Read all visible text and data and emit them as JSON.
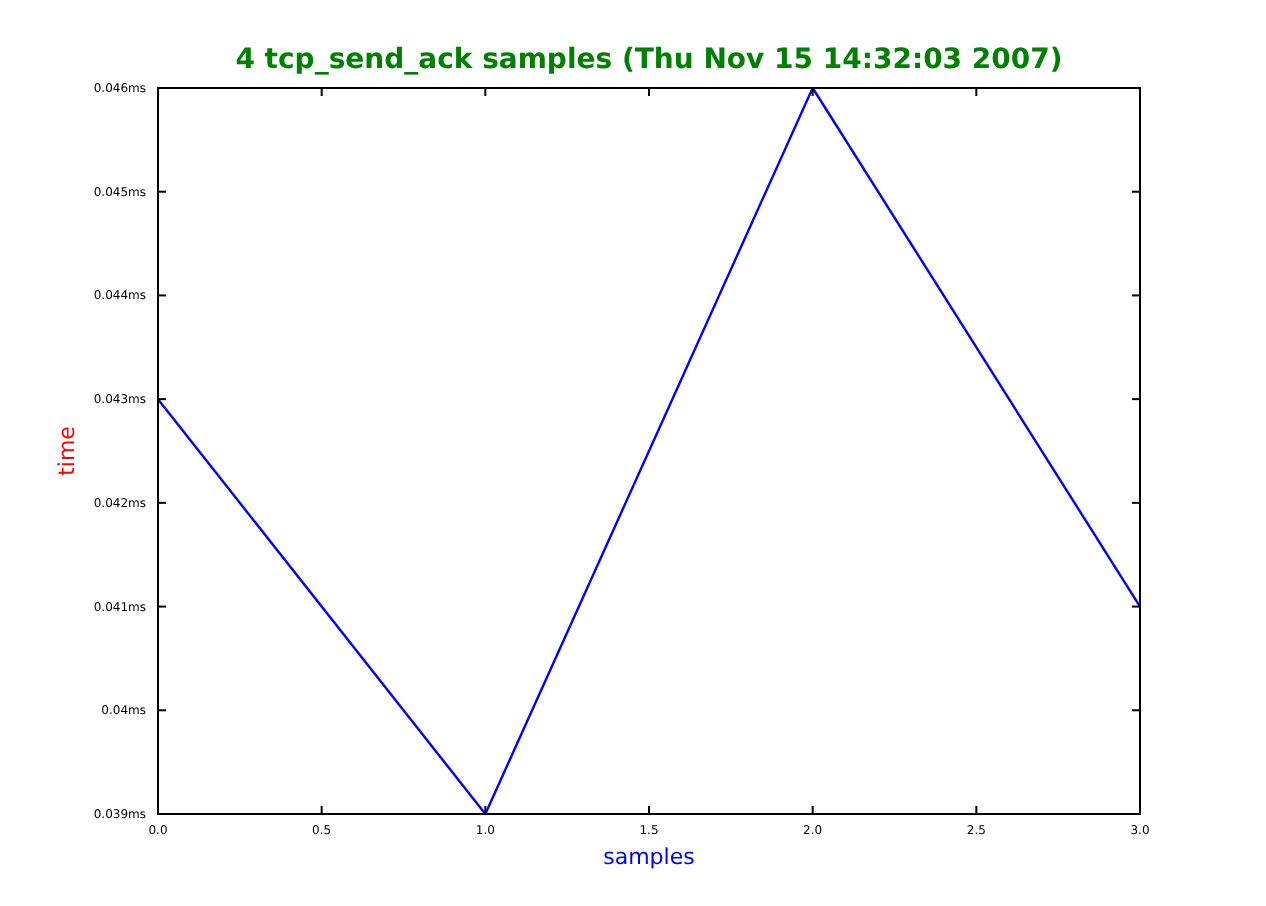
{
  "chart_data": {
    "type": "line",
    "title": "4 tcp_send_ack samples (Thu Nov 15 14:32:03 2007)",
    "xlabel": "samples",
    "ylabel": "time",
    "x": [
      0,
      1,
      2,
      3
    ],
    "series": [
      {
        "color": "#0000ff",
        "values": [
          0.043,
          0.039,
          0.046,
          0.041
        ]
      }
    ],
    "xlim": [
      0,
      3
    ],
    "xticks": [
      {
        "value": 0,
        "label": "0.0"
      },
      {
        "value": 0.5,
        "label": "0.5"
      },
      {
        "value": 1,
        "label": "1.0"
      },
      {
        "value": 1.5,
        "label": "1.5"
      },
      {
        "value": 2,
        "label": "2.0"
      },
      {
        "value": 2.5,
        "label": "2.5"
      },
      {
        "value": 3,
        "label": "3.0"
      }
    ],
    "ylim": [
      0.039,
      0.046
    ],
    "yticks": [
      {
        "value": 0.039,
        "label": "0.039ms"
      },
      {
        "value": 0.04,
        "label": "0.04ms"
      },
      {
        "value": 0.041,
        "label": "0.041ms"
      },
      {
        "value": 0.042,
        "label": "0.042ms"
      },
      {
        "value": 0.043,
        "label": "0.043ms"
      },
      {
        "value": 0.044,
        "label": "0.044ms"
      },
      {
        "value": 0.045,
        "label": "0.045ms"
      },
      {
        "value": 0.046,
        "label": "0.046ms"
      }
    ],
    "marker": "none",
    "line_style": "solid"
  }
}
